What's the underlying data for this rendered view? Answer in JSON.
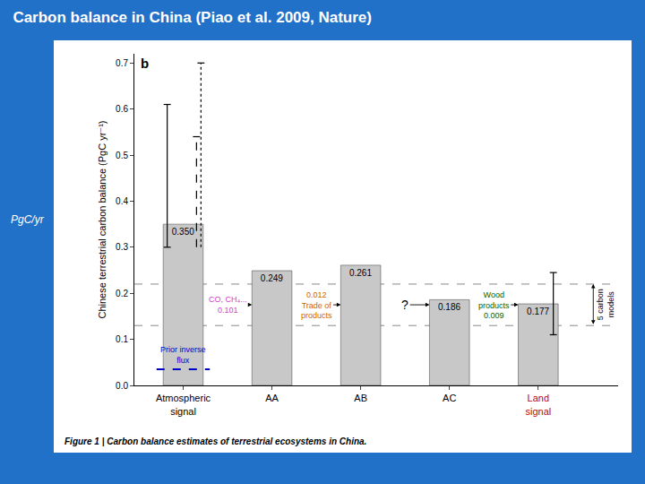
{
  "chart_data": {
    "type": "bar",
    "title": "Carbon balance in China (Piao et al. 2009, Nature)",
    "subtitle": "PgC/yr",
    "panel_label": "b",
    "ylabel": "Chinese terrestrial carbon balance (PgC yr⁻¹)",
    "caption": "Figure 1 | Carbon balance estimates of terrestrial ecosystems in China.",
    "categories": [
      "Atmospheric\nsignal",
      "AA",
      "AB",
      "AC",
      "Land\nsignal"
    ],
    "category_colors": [
      "black",
      "black",
      "black",
      "black",
      "#cc0000"
    ],
    "values": [
      0.35,
      0.249,
      0.261,
      0.186,
      0.177
    ],
    "value_labels": [
      "0.350",
      "0.249",
      "0.261",
      "0.186",
      "0.177"
    ],
    "data_labels": true,
    "color": "#c8c8c8",
    "ylim": [
      0.0,
      0.72
    ],
    "yticks": [
      {
        "value": 0,
        "label": "0.0"
      },
      0.1,
      0.2,
      0.3,
      0.4,
      0.5,
      0.6,
      0.7
    ],
    "grid": false,
    "reference_lines": {
      "values": [
        0.22,
        0.13
      ],
      "label": "5 carbon\nmodels"
    },
    "error_bars": [
      {
        "category": "Atmospheric\nsignal",
        "low": 0.3,
        "high": 0.61,
        "line_style": "solid"
      },
      {
        "category": "Atmospheric\nsignal",
        "low": 0.3,
        "high": 0.54,
        "line_style": "dashed"
      },
      {
        "category": "Atmospheric\nsignal",
        "low": 0.3,
        "high": 0.7,
        "line_style": "dotted"
      },
      {
        "category": "Land\nsignal",
        "low": 0.11,
        "high": 0.245,
        "line_style": "solid"
      }
    ],
    "prior_flux": {
      "category": "Atmospheric\nsignal",
      "value": 0.035,
      "label": "Prior inverse\nflux",
      "color": "#0000cc"
    },
    "annotations": [
      {
        "target": "AA",
        "texts": [
          "CO, CH₄...",
          "0.101"
        ],
        "color": "#cc44cc"
      },
      {
        "target": "AB",
        "texts": [
          "0.012",
          "Trade of\nproducts"
        ],
        "color": "#cc6600"
      },
      {
        "target": "AC",
        "texts": [
          "?"
        ],
        "color": "black"
      },
      {
        "target": "Land\nsignal",
        "texts": [
          "Wood\nproducts",
          "0.009"
        ],
        "color": "darkgreen"
      }
    ],
    "background": "#2271c8",
    "title_color": "#ffffff"
  }
}
